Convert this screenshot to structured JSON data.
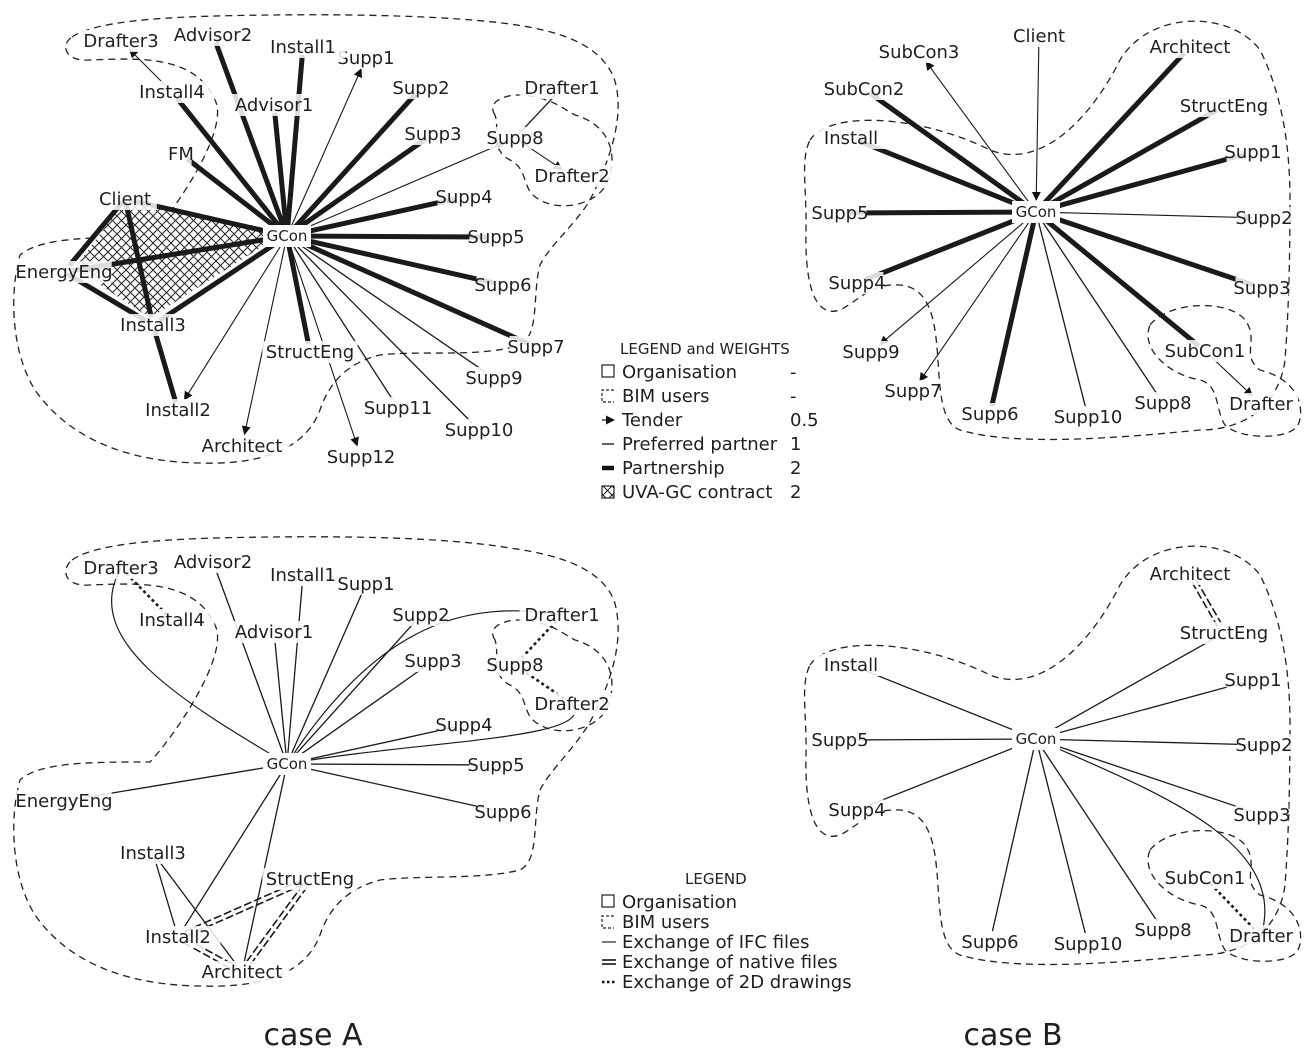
{
  "labels": {
    "A1": {
      "GCon": "GCon",
      "Client": "Client",
      "EnergyEng": "EnergyEng",
      "Install3": "Install3",
      "Install2": "Install2",
      "Architect": "Architect",
      "StructEng": "StructEng",
      "Supp12": "Supp12",
      "Supp11": "Supp11",
      "Supp10": "Supp10",
      "Supp9": "Supp9",
      "Supp7": "Supp7",
      "Supp6": "Supp6",
      "Supp5": "Supp5",
      "Supp4": "Supp4",
      "Supp3": "Supp3",
      "Supp2": "Supp2",
      "Supp1": "Supp1",
      "Supp8": "Supp8",
      "Drafter1": "Drafter1",
      "Drafter2": "Drafter2",
      "Install1": "Install1",
      "Advisor1": "Advisor1",
      "Advisor2": "Advisor2",
      "Install4": "Install4",
      "Drafter3": "Drafter3",
      "FM": "FM"
    },
    "B1": {
      "GCon": "GCon",
      "Client": "Client",
      "SubCon3": "SubCon3",
      "SubCon2": "SubCon2",
      "Install": "Install",
      "Supp5": "Supp5",
      "Supp4": "Supp4",
      "Supp9": "Supp9",
      "Supp7": "Supp7",
      "Supp6": "Supp6",
      "Supp10": "Supp10",
      "Supp8": "Supp8",
      "SubCon1": "SubCon1",
      "Drafter": "Drafter",
      "Supp3": "Supp3",
      "Supp2": "Supp2",
      "Supp1": "Supp1",
      "StructEng": "StructEng",
      "Architect": "Architect"
    },
    "A2": {
      "GCon": "GCon",
      "Drafter3": "Drafter3",
      "Advisor2": "Advisor2",
      "Install1": "Install1",
      "Supp1": "Supp1",
      "Install4": "Install4",
      "Advisor1": "Advisor1",
      "Supp2": "Supp2",
      "Drafter1": "Drafter1",
      "Supp8": "Supp8",
      "Supp3": "Supp3",
      "Drafter2": "Drafter2",
      "Supp4": "Supp4",
      "Supp5": "Supp5",
      "EnergyEng": "EnergyEng",
      "Supp6": "Supp6",
      "Install3": "Install3",
      "StructEng": "StructEng",
      "Install2": "Install2",
      "Architect": "Architect"
    },
    "B2": {
      "GCon": "GCon",
      "Architect": "Architect",
      "StructEng": "StructEng",
      "Install": "Install",
      "Supp1": "Supp1",
      "Supp5": "Supp5",
      "Supp2": "Supp2",
      "Supp4": "Supp4",
      "Supp3": "Supp3",
      "SubCon1": "SubCon1",
      "Supp6": "Supp6",
      "Supp10": "Supp10",
      "Supp8": "Supp8",
      "Drafter": "Drafter"
    }
  },
  "legend1": {
    "title": "LEGEND and WEIGHTS",
    "items": [
      {
        "label": "Organisation",
        "weight": "-"
      },
      {
        "label": "BIM users",
        "weight": "-"
      },
      {
        "label": "Tender",
        "weight": "0.5"
      },
      {
        "label": "Preferred partner",
        "weight": "1"
      },
      {
        "label": "Partnership",
        "weight": "2"
      },
      {
        "label": "UVA-GC contract",
        "weight": "2"
      }
    ]
  },
  "legend2": {
    "title": "LEGEND",
    "items": [
      {
        "label": "Organisation"
      },
      {
        "label": "BIM users"
      },
      {
        "label": "Exchange of IFC files"
      },
      {
        "label": "Exchange of native files"
      },
      {
        "label": "Exchange of 2D drawings"
      }
    ]
  },
  "captions": {
    "caseA": "case A",
    "caseB": "case B"
  }
}
